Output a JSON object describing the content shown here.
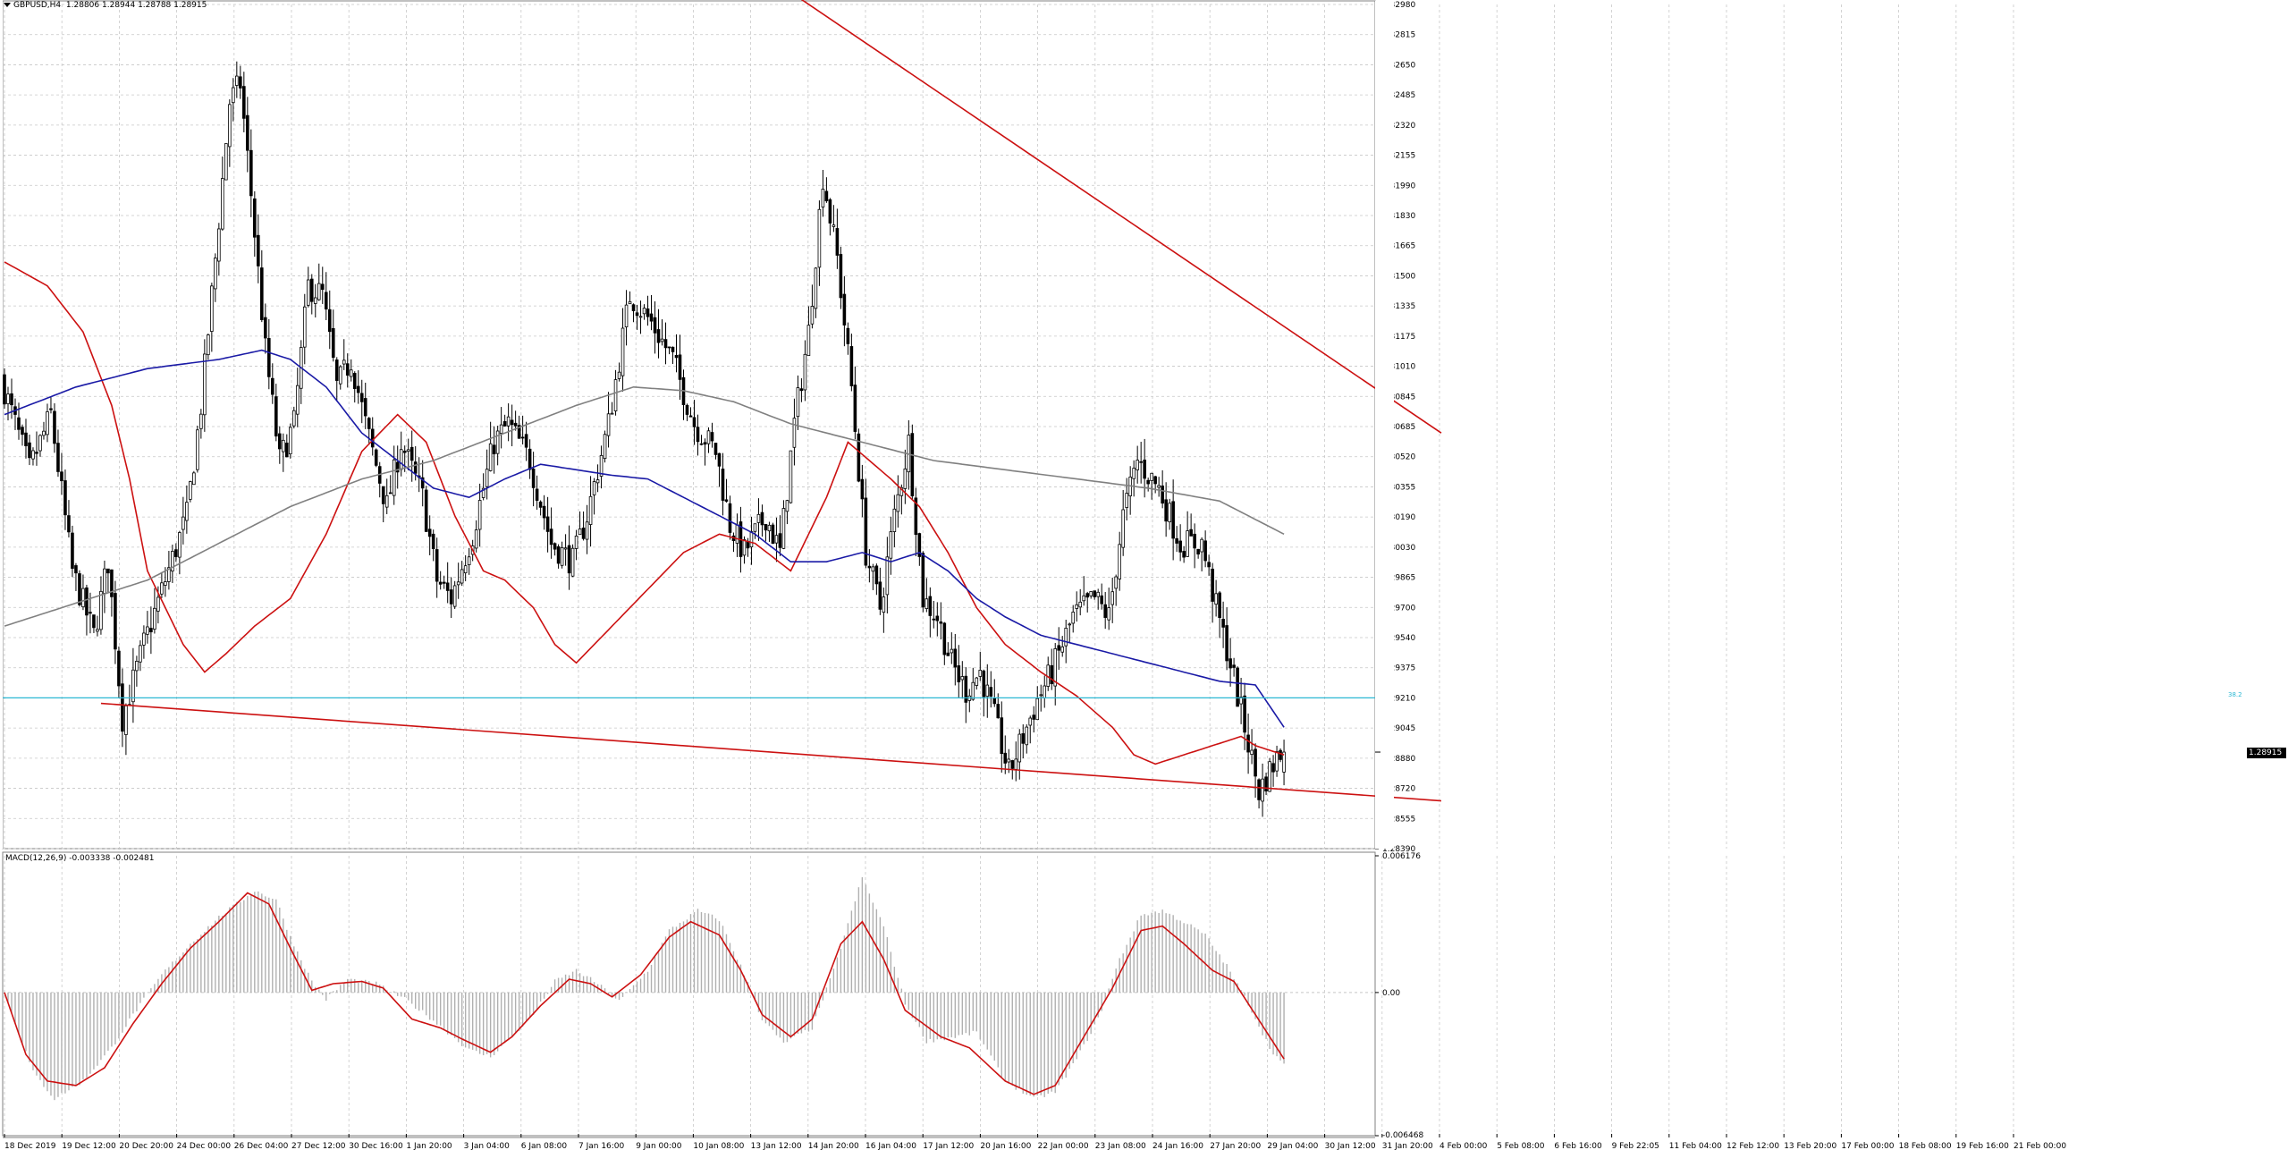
{
  "header": {
    "symbol": "GBPUSD,H4",
    "ohlc": "1.28806 1.28944 1.28788 1.28915"
  },
  "macd": {
    "label": "MACD(12,26,9) -0.003338 -0.002481",
    "scale_top": "0.006176",
    "scale_zero": "0.00",
    "scale_bottom": "-0.006468",
    "range": [
      -0.006468,
      0.006176
    ]
  },
  "fibo_label": "38.2",
  "current_price": "1.28915",
  "price_axis": {
    "range": [
      1.2839,
      1.3298
    ],
    "ticks": [
      "1.32980",
      "1.32815",
      "1.32650",
      "1.32485",
      "1.32320",
      "1.32155",
      "1.31990",
      "1.31830",
      "1.31665",
      "1.31500",
      "1.31335",
      "1.31175",
      "1.31010",
      "1.30845",
      "1.30685",
      "1.30520",
      "1.30355",
      "1.30190",
      "1.30030",
      "1.29865",
      "1.29700",
      "1.29540",
      "1.29375",
      "1.29210",
      "1.29045",
      "1.28880",
      "1.28720",
      "1.28555",
      "1.28390"
    ]
  },
  "time_axis": {
    "ticks": [
      "18 Dec 2019",
      "19 Dec 12:00",
      "20 Dec 20:00",
      "24 Dec 00:00",
      "26 Dec 04:00",
      "27 Dec 12:00",
      "30 Dec 16:00",
      "1 Jan 20:00",
      "3 Jan 04:00",
      "6 Jan 08:00",
      "7 Jan 16:00",
      "9 Jan 00:00",
      "10 Jan 08:00",
      "13 Jan 12:00",
      "14 Jan 20:00",
      "16 Jan 04:00",
      "17 Jan 12:00",
      "20 Jan 16:00",
      "22 Jan 00:00",
      "23 Jan 08:00",
      "24 Jan 16:00",
      "27 Jan 20:00",
      "29 Jan 04:00",
      "30 Jan 12:00",
      "31 Jan 20:00",
      "4 Feb 00:00",
      "5 Feb 08:00",
      "6 Feb 16:00",
      "9 Feb 22:05",
      "11 Feb 04:00",
      "12 Feb 12:00",
      "13 Feb 20:00",
      "17 Feb 00:00",
      "18 Feb 08:00",
      "19 Feb 16:00",
      "21 Feb 00:00"
    ]
  },
  "colors": {
    "bull": "#ffffff",
    "bear": "#000000",
    "ma_red": "#cc1111",
    "ma_blue": "#1a1aa6",
    "ma_gray": "#808080",
    "trend": "#cc1111",
    "fibo": "#2bb8d3",
    "hist": "#b0b0b0",
    "signal": "#cc1111",
    "grid": "#c8c8c8"
  },
  "chart_data": {
    "type": "candlestick",
    "symbol": "GBPUSD",
    "timeframe": "H4",
    "ylim": [
      1.2839,
      1.3298
    ],
    "price_anchors": [
      [
        0,
        1.3095
      ],
      [
        8,
        1.3045
      ],
      [
        14,
        1.3075
      ],
      [
        20,
        1.299
      ],
      [
        26,
        1.2955
      ],
      [
        30,
        1.2995
      ],
      [
        34,
        1.291
      ],
      [
        40,
        1.295
      ],
      [
        46,
        1.2985
      ],
      [
        52,
        1.302
      ],
      [
        56,
        1.308
      ],
      [
        60,
        1.316
      ],
      [
        64,
        1.3245
      ],
      [
        67,
        1.3255
      ],
      [
        70,
        1.3195
      ],
      [
        74,
        1.311
      ],
      [
        78,
        1.305
      ],
      [
        82,
        1.307
      ],
      [
        86,
        1.3145
      ],
      [
        90,
        1.314
      ],
      [
        94,
        1.309
      ],
      [
        98,
        1.3105
      ],
      [
        102,
        1.307
      ],
      [
        108,
        1.3025
      ],
      [
        112,
        1.306
      ],
      [
        118,
        1.303
      ],
      [
        122,
        1.2985
      ],
      [
        126,
        1.2975
      ],
      [
        132,
        1.301
      ],
      [
        138,
        1.306
      ],
      [
        142,
        1.307
      ],
      [
        148,
        1.305
      ],
      [
        154,
        1.3005
      ],
      [
        160,
        1.2995
      ],
      [
        164,
        1.302
      ],
      [
        170,
        1.307
      ],
      [
        176,
        1.314
      ],
      [
        182,
        1.3125
      ],
      [
        188,
        1.3105
      ],
      [
        194,
        1.307
      ],
      [
        200,
        1.3055
      ],
      [
        204,
        1.3015
      ],
      [
        208,
        1.3
      ],
      [
        214,
        1.302
      ],
      [
        218,
        1.3
      ],
      [
        222,
        1.307
      ],
      [
        226,
        1.312
      ],
      [
        230,
        1.3205
      ],
      [
        234,
        1.316
      ],
      [
        238,
        1.309
      ],
      [
        242,
        1.3
      ],
      [
        246,
        1.297
      ],
      [
        250,
        1.302
      ],
      [
        254,
        1.306
      ],
      [
        258,
        1.2975
      ],
      [
        262,
        1.2965
      ],
      [
        266,
        1.294
      ],
      [
        270,
        1.2925
      ],
      [
        274,
        1.2935
      ],
      [
        278,
        1.291
      ],
      [
        282,
        1.288
      ],
      [
        286,
        1.29
      ],
      [
        290,
        1.292
      ],
      [
        294,
        1.2935
      ],
      [
        300,
        1.2965
      ],
      [
        306,
        1.2975
      ],
      [
        310,
        1.2965
      ],
      [
        314,
        1.302
      ],
      [
        318,
        1.305
      ],
      [
        324,
        1.3035
      ],
      [
        330,
        1.3005
      ],
      [
        336,
        1.3005
      ],
      [
        340,
        1.297
      ],
      [
        344,
        1.294
      ],
      [
        348,
        1.2905
      ],
      [
        352,
        1.287
      ],
      [
        356,
        1.2885
      ],
      [
        358,
        1.28915
      ]
    ],
    "moving_averages": [
      {
        "color": "red",
        "anchors": [
          [
            0,
            1.3158
          ],
          [
            12,
            1.3145
          ],
          [
            22,
            1.312
          ],
          [
            30,
            1.308
          ],
          [
            35,
            1.304
          ],
          [
            40,
            1.299
          ],
          [
            50,
            1.295
          ],
          [
            56,
            1.2935
          ],
          [
            62,
            1.2945
          ],
          [
            70,
            1.296
          ],
          [
            80,
            1.2975
          ],
          [
            90,
            1.301
          ],
          [
            100,
            1.3055
          ],
          [
            110,
            1.3075
          ],
          [
            118,
            1.306
          ],
          [
            126,
            1.302
          ],
          [
            134,
            1.299
          ],
          [
            140,
            1.2985
          ],
          [
            148,
            1.297
          ],
          [
            154,
            1.295
          ],
          [
            160,
            1.294
          ],
          [
            170,
            1.296
          ],
          [
            180,
            1.298
          ],
          [
            190,
            1.3
          ],
          [
            200,
            1.301
          ],
          [
            210,
            1.3005
          ],
          [
            220,
            1.299
          ],
          [
            230,
            1.303
          ],
          [
            236,
            1.306
          ],
          [
            242,
            1.305
          ],
          [
            248,
            1.304
          ],
          [
            256,
            1.3025
          ],
          [
            264,
            1.3
          ],
          [
            272,
            1.297
          ],
          [
            280,
            1.295
          ],
          [
            290,
            1.2935
          ],
          [
            300,
            1.2922
          ],
          [
            310,
            1.2905
          ],
          [
            316,
            1.289
          ],
          [
            322,
            1.2885
          ],
          [
            330,
            1.289
          ],
          [
            338,
            1.2895
          ],
          [
            346,
            1.29
          ],
          [
            350,
            1.2895
          ],
          [
            358,
            1.289
          ]
        ]
      },
      {
        "color": "blue",
        "anchors": [
          [
            0,
            1.3075
          ],
          [
            20,
            1.309
          ],
          [
            40,
            1.31
          ],
          [
            60,
            1.3105
          ],
          [
            72,
            1.311
          ],
          [
            80,
            1.3105
          ],
          [
            90,
            1.309
          ],
          [
            100,
            1.3065
          ],
          [
            110,
            1.305
          ],
          [
            120,
            1.3035
          ],
          [
            130,
            1.303
          ],
          [
            140,
            1.304
          ],
          [
            150,
            1.3048
          ],
          [
            160,
            1.3045
          ],
          [
            170,
            1.3042
          ],
          [
            180,
            1.304
          ],
          [
            190,
            1.303
          ],
          [
            200,
            1.302
          ],
          [
            210,
            1.301
          ],
          [
            220,
            1.2995
          ],
          [
            230,
            1.2995
          ],
          [
            240,
            1.3
          ],
          [
            248,
            1.2995
          ],
          [
            256,
            1.3
          ],
          [
            264,
            1.299
          ],
          [
            272,
            1.2975
          ],
          [
            280,
            1.2965
          ],
          [
            290,
            1.2955
          ],
          [
            300,
            1.295
          ],
          [
            310,
            1.2945
          ],
          [
            320,
            1.294
          ],
          [
            330,
            1.2935
          ],
          [
            340,
            1.293
          ],
          [
            350,
            1.2928
          ],
          [
            358,
            1.2905
          ]
        ]
      },
      {
        "color": "gray",
        "anchors": [
          [
            0,
            1.296
          ],
          [
            40,
            1.2985
          ],
          [
            60,
            1.3005
          ],
          [
            80,
            1.3025
          ],
          [
            100,
            1.304
          ],
          [
            120,
            1.305
          ],
          [
            140,
            1.3065
          ],
          [
            160,
            1.308
          ],
          [
            176,
            1.309
          ],
          [
            190,
            1.3088
          ],
          [
            204,
            1.3082
          ],
          [
            220,
            1.307
          ],
          [
            240,
            1.306
          ],
          [
            260,
            1.305
          ],
          [
            280,
            1.3045
          ],
          [
            300,
            1.304
          ],
          [
            320,
            1.3035
          ],
          [
            340,
            1.3028
          ],
          [
            358,
            1.301
          ]
        ]
      }
    ],
    "trendlines": [
      {
        "from": [
          159,
          1.3385
        ],
        "to": [
          402,
          1.3065
        ]
      },
      {
        "from": [
          27,
          1.2918
        ],
        "to": [
          402,
          1.2865
        ]
      }
    ],
    "fibonacci_level": {
      "label": "38.2",
      "price": 1.2921
    },
    "macd_series": {
      "histogram_anchors": [
        [
          0,
          0.0
        ],
        [
          8,
          -0.0036
        ],
        [
          14,
          -0.0048
        ],
        [
          22,
          -0.004
        ],
        [
          30,
          -0.0025
        ],
        [
          36,
          -0.001
        ],
        [
          44,
          0.0008
        ],
        [
          52,
          0.0022
        ],
        [
          60,
          0.0034
        ],
        [
          70,
          0.0046
        ],
        [
          76,
          0.0042
        ],
        [
          80,
          0.0025
        ],
        [
          86,
          0.0005
        ],
        [
          90,
          -0.0003
        ],
        [
          96,
          0.0006
        ],
        [
          104,
          0.0004
        ],
        [
          112,
          -0.0003
        ],
        [
          118,
          -0.001
        ],
        [
          124,
          -0.0018
        ],
        [
          130,
          -0.0026
        ],
        [
          136,
          -0.0029
        ],
        [
          142,
          -0.002
        ],
        [
          148,
          -0.001
        ],
        [
          154,
          0.0005
        ],
        [
          160,
          0.001
        ],
        [
          166,
          0.0004
        ],
        [
          172,
          -0.0004
        ],
        [
          180,
          0.001
        ],
        [
          186,
          0.0028
        ],
        [
          194,
          0.0037
        ],
        [
          200,
          0.0033
        ],
        [
          206,
          0.0012
        ],
        [
          212,
          -0.0012
        ],
        [
          218,
          -0.0023
        ],
        [
          226,
          -0.0016
        ],
        [
          232,
          0.001
        ],
        [
          240,
          0.0052
        ],
        [
          246,
          0.003
        ],
        [
          252,
          -0.0005
        ],
        [
          258,
          -0.0022
        ],
        [
          266,
          -0.002
        ],
        [
          272,
          -0.0018
        ],
        [
          280,
          -0.004
        ],
        [
          288,
          -0.0048
        ],
        [
          294,
          -0.0045
        ],
        [
          300,
          -0.003
        ],
        [
          306,
          -0.0012
        ],
        [
          312,
          0.0015
        ],
        [
          318,
          0.0035
        ],
        [
          324,
          0.0037
        ],
        [
          330,
          0.0032
        ],
        [
          336,
          0.0026
        ],
        [
          342,
          0.0012
        ],
        [
          348,
          -0.0005
        ],
        [
          354,
          -0.0025
        ],
        [
          358,
          -0.0033
        ]
      ],
      "signal_anchors": [
        [
          0,
          0.0
        ],
        [
          6,
          -0.0028
        ],
        [
          12,
          -0.004
        ],
        [
          20,
          -0.0042
        ],
        [
          28,
          -0.0034
        ],
        [
          36,
          -0.0014
        ],
        [
          44,
          0.0004
        ],
        [
          52,
          0.002
        ],
        [
          60,
          0.0032
        ],
        [
          68,
          0.0045
        ],
        [
          74,
          0.004
        ],
        [
          80,
          0.002
        ],
        [
          86,
          0.0001
        ],
        [
          92,
          0.0004
        ],
        [
          100,
          0.0005
        ],
        [
          106,
          0.0002
        ],
        [
          114,
          -0.0012
        ],
        [
          122,
          -0.0016
        ],
        [
          128,
          -0.0021
        ],
        [
          136,
          -0.0027
        ],
        [
          142,
          -0.002
        ],
        [
          150,
          -0.0006
        ],
        [
          158,
          0.0006
        ],
        [
          164,
          0.0004
        ],
        [
          170,
          -0.0002
        ],
        [
          178,
          0.0008
        ],
        [
          186,
          0.0025
        ],
        [
          192,
          0.0032
        ],
        [
          200,
          0.0026
        ],
        [
          206,
          0.001
        ],
        [
          212,
          -0.001
        ],
        [
          220,
          -0.002
        ],
        [
          226,
          -0.0012
        ],
        [
          234,
          0.0022
        ],
        [
          240,
          0.0032
        ],
        [
          246,
          0.0015
        ],
        [
          252,
          -0.0008
        ],
        [
          262,
          -0.002
        ],
        [
          270,
          -0.0025
        ],
        [
          280,
          -0.004
        ],
        [
          288,
          -0.0046
        ],
        [
          294,
          -0.0042
        ],
        [
          302,
          -0.002
        ],
        [
          310,
          0.0002
        ],
        [
          318,
          0.0028
        ],
        [
          324,
          0.003
        ],
        [
          330,
          0.0022
        ],
        [
          338,
          0.001
        ],
        [
          344,
          0.0005
        ],
        [
          352,
          -0.0015
        ],
        [
          358,
          -0.003
        ]
      ]
    }
  }
}
